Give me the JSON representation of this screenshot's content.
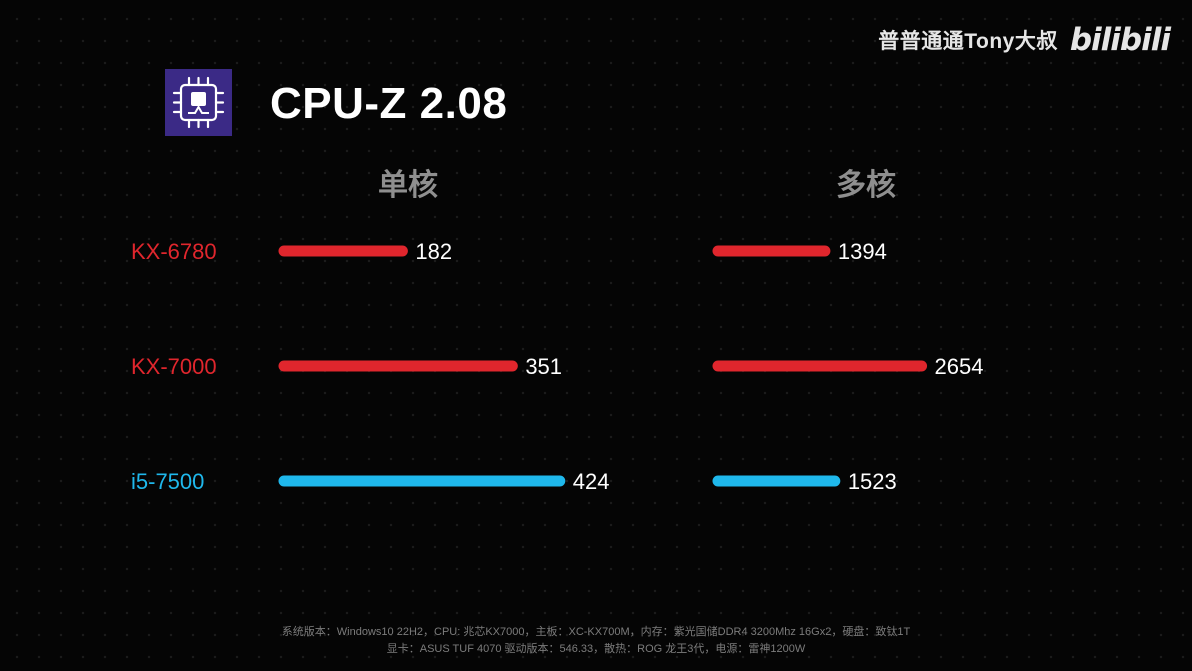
{
  "watermark": {
    "channel": "普普通通Tony大叔",
    "logo_text": "bilibili"
  },
  "title": "CPU-Z 2.08",
  "icons": {
    "app_icon": "cpu-chip-icon"
  },
  "colors": {
    "background": "#050505",
    "red": "#e0262d",
    "blue": "#1fb8ec",
    "header": "#8f8f8f",
    "value_text": "#ffffff"
  },
  "chart_data": {
    "type": "bar",
    "orientation": "horizontal",
    "categories": [
      "KX-6780",
      "KX-7000",
      "i5-7500"
    ],
    "category_colors": [
      "#e0262d",
      "#e0262d",
      "#1fb8ec"
    ],
    "panels": [
      {
        "title": "单核",
        "values": [
          182,
          351,
          424
        ]
      },
      {
        "title": "多核",
        "values": [
          1394,
          2654,
          1523
        ]
      }
    ],
    "grid": false,
    "axes_visible": false,
    "data_labels": true
  },
  "footer": {
    "line1": "系统版本：Windows10 22H2，CPU: 兆芯KX7000，主板：XC-KX700M，内存：紫光国储DDR4 3200Mhz 16Gx2，硬盘：致钛1T",
    "line2": "显卡：ASUS TUF 4070 驱动版本：546.33，散热：ROG 龙王3代，电源：雷神1200W"
  }
}
